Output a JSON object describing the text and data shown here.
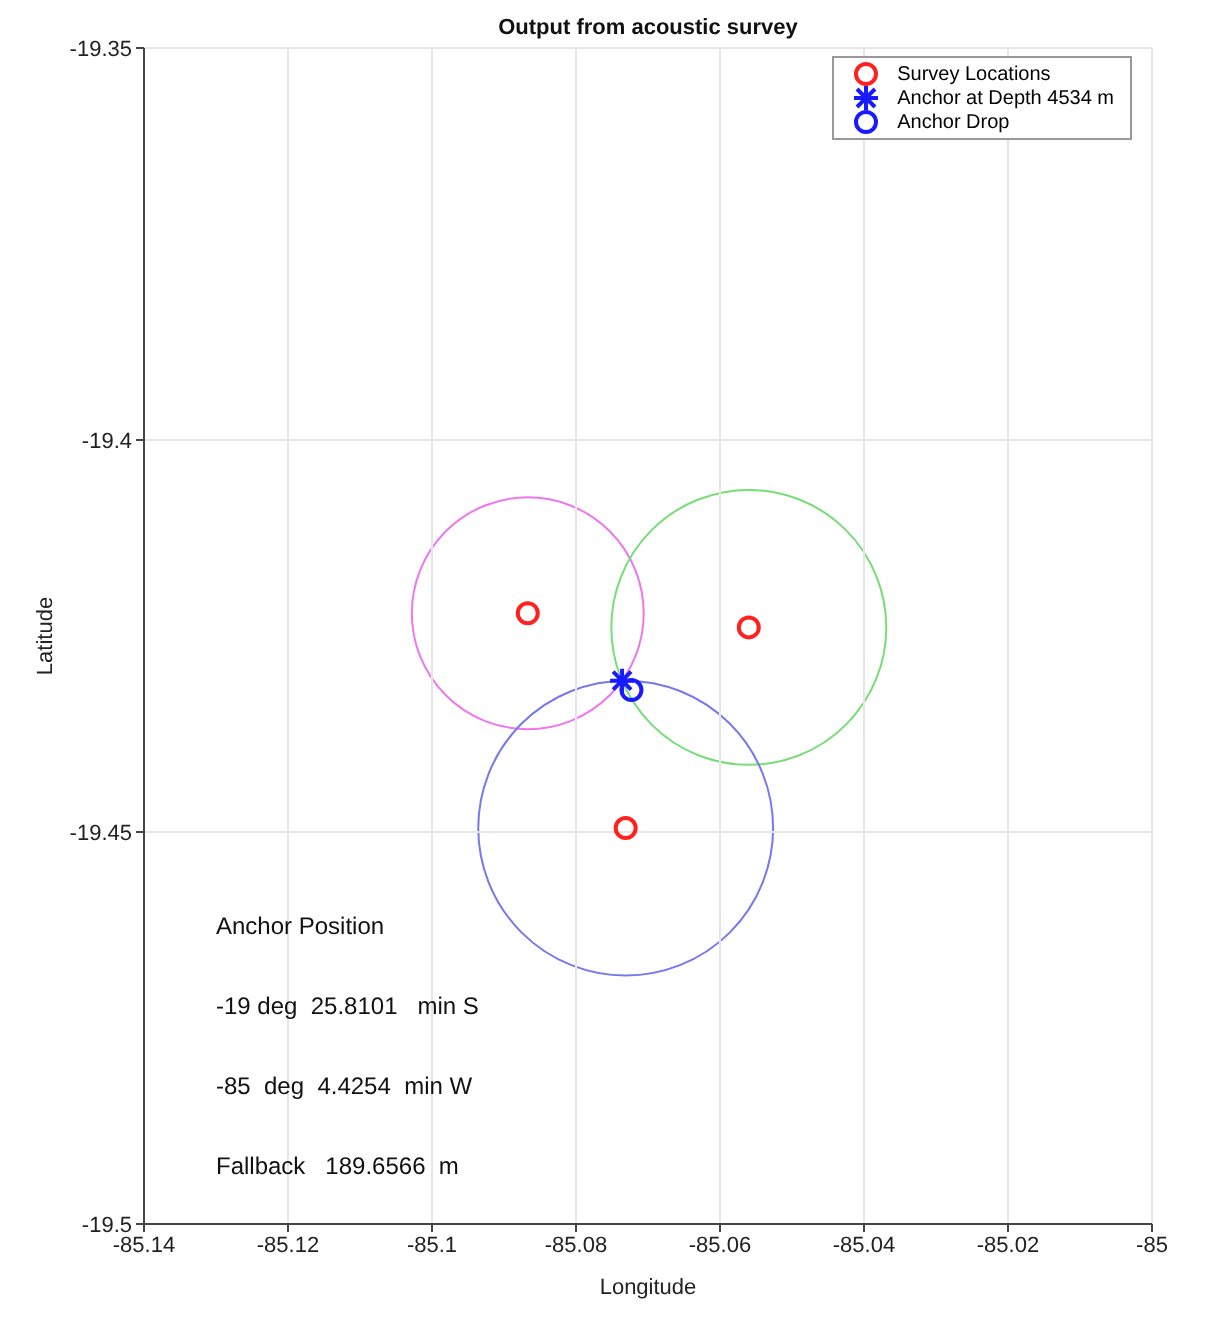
{
  "chart_data": {
    "type": "scatter",
    "title": "Output from acoustic survey",
    "xlabel": "Longitude",
    "ylabel": "Latitude",
    "xlim": [
      -85.14,
      -85
    ],
    "xticks": [
      -85.14,
      -85.12,
      -85.1,
      -85.08,
      -85.06,
      -85.04,
      -85.02,
      -85
    ],
    "ylim": [
      -19.5,
      -19.35
    ],
    "yticks": [
      -19.5,
      -19.45,
      -19.4,
      -19.35
    ],
    "grid": true,
    "legend": "top right",
    "series": [
      {
        "name": "Survey Locations",
        "type": "scatter",
        "marker": "circle",
        "color": "#ff2020",
        "x": [
          -85.0867,
          -85.056,
          -85.0731
        ],
        "values": [
          -19.4221,
          -19.4239,
          -19.4495
        ]
      },
      {
        "name": "Anchor at Depth 4534 m",
        "type": "scatter",
        "marker": "cross",
        "color": "#1a1aff",
        "x": [
          -85.0736
        ],
        "values": [
          -19.4307
        ]
      },
      {
        "name": "Anchor Drop",
        "type": "scatter",
        "marker": "circle",
        "color": "#1a1aff",
        "x": [
          -85.0723
        ],
        "values": [
          -19.4319
        ]
      }
    ],
    "annotations": [
      "Anchor Position",
      "-19 deg  25.8101   min S",
      "-85  deg  4.4254  min W",
      "Fallback   189.6566  m"
    ]
  }
}
